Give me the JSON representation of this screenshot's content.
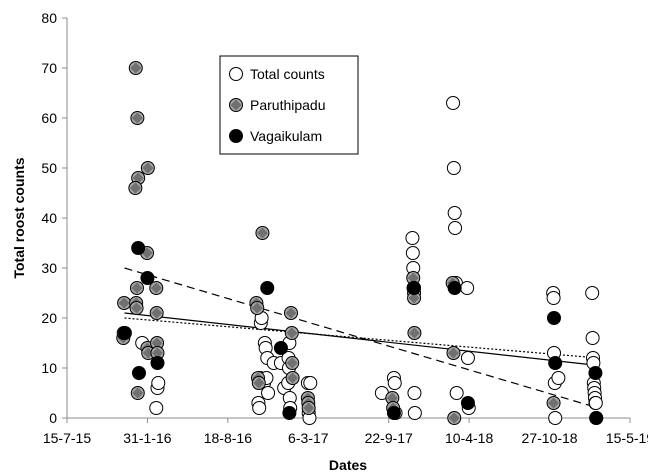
{
  "chart_data": {
    "type": "scatter",
    "title": "",
    "xlabel": "Dates",
    "ylabel": "Total roost counts",
    "x_tick_labels": [
      "15-7-15",
      "31-1-16",
      "18-8-16",
      "6-3-17",
      "22-9-17",
      "10-4-18",
      "27-10-18",
      "15-5-19"
    ],
    "xlim": [
      "2015-07-15",
      "2019-05-15"
    ],
    "ylim": [
      0,
      80
    ],
    "y_ticks": [
      0,
      10,
      20,
      30,
      40,
      50,
      60,
      70,
      80
    ],
    "grid": false,
    "legend_position": "top-center",
    "series": [
      {
        "name": "Total counts",
        "marker": "open-circle",
        "color": "#000000",
        "points": [
          [
            "2016-01-18",
            15
          ],
          [
            "2016-02-22",
            2
          ],
          [
            "2016-02-25",
            6
          ],
          [
            "2016-02-27",
            7
          ],
          [
            "2016-11-02",
            3
          ],
          [
            "2016-11-04",
            2
          ],
          [
            "2016-11-06",
            8
          ],
          [
            "2016-11-08",
            19
          ],
          [
            "2016-11-10",
            20
          ],
          [
            "2016-11-16",
            7
          ],
          [
            "2016-11-18",
            15
          ],
          [
            "2016-11-20",
            14
          ],
          [
            "2016-11-22",
            8
          ],
          [
            "2016-11-24",
            12
          ],
          [
            "2016-11-26",
            5
          ],
          [
            "2016-12-10",
            11
          ],
          [
            "2016-12-28",
            11
          ],
          [
            "2017-01-05",
            6
          ],
          [
            "2017-01-15",
            7
          ],
          [
            "2017-01-16",
            12
          ],
          [
            "2017-01-17",
            10
          ],
          [
            "2017-01-18",
            15
          ],
          [
            "2017-01-19",
            4
          ],
          [
            "2017-01-20",
            2
          ],
          [
            "2017-03-05",
            7
          ],
          [
            "2017-03-07",
            1
          ],
          [
            "2017-03-09",
            0
          ],
          [
            "2017-03-11",
            7
          ],
          [
            "2017-09-05",
            5
          ],
          [
            "2017-10-05",
            8
          ],
          [
            "2017-10-07",
            7
          ],
          [
            "2017-10-09",
            1
          ],
          [
            "2017-11-20",
            36
          ],
          [
            "2017-11-21",
            33
          ],
          [
            "2017-11-22",
            30
          ],
          [
            "2017-11-23",
            26
          ],
          [
            "2017-11-24",
            25
          ],
          [
            "2017-11-25",
            5
          ],
          [
            "2017-11-26",
            1
          ],
          [
            "2018-03-01",
            63
          ],
          [
            "2018-03-03",
            50
          ],
          [
            "2018-03-05",
            41
          ],
          [
            "2018-03-06",
            38
          ],
          [
            "2018-03-08",
            27
          ],
          [
            "2018-03-10",
            5
          ],
          [
            "2018-04-05",
            26
          ],
          [
            "2018-04-07",
            12
          ],
          [
            "2018-04-09",
            2
          ],
          [
            "2018-11-05",
            25
          ],
          [
            "2018-11-06",
            24
          ],
          [
            "2018-11-07",
            13
          ],
          [
            "2018-11-09",
            7
          ],
          [
            "2018-11-10",
            0
          ],
          [
            "2018-11-18",
            8
          ],
          [
            "2019-02-10",
            25
          ],
          [
            "2019-02-11",
            16
          ],
          [
            "2019-02-12",
            12
          ],
          [
            "2019-02-13",
            11
          ],
          [
            "2019-02-14",
            7
          ],
          [
            "2019-02-15",
            6
          ],
          [
            "2019-02-16",
            5
          ],
          [
            "2019-02-17",
            4
          ],
          [
            "2019-02-18",
            3
          ],
          [
            "2019-02-19",
            3
          ],
          [
            "2019-02-20",
            0
          ]
        ]
      },
      {
        "name": "Paruthipadu",
        "marker": "grey-diamond-circle",
        "color": "#808080",
        "points": [
          [
            "2015-12-02",
            16
          ],
          [
            "2015-12-03",
            17
          ],
          [
            "2015-12-04",
            23
          ],
          [
            "2016-01-02",
            70
          ],
          [
            "2016-01-06",
            60
          ],
          [
            "2016-01-08",
            48
          ],
          [
            "2016-01-01",
            46
          ],
          [
            "2016-01-05",
            26
          ],
          [
            "2016-01-03",
            23
          ],
          [
            "2016-01-04",
            22
          ],
          [
            "2016-01-07",
            5
          ],
          [
            "2016-02-01",
            50
          ],
          [
            "2016-01-30",
            33
          ],
          [
            "2016-01-31",
            14
          ],
          [
            "2016-02-02",
            13
          ],
          [
            "2016-02-22",
            26
          ],
          [
            "2016-02-23",
            21
          ],
          [
            "2016-02-24",
            15
          ],
          [
            "2016-02-25",
            13
          ],
          [
            "2016-10-28",
            23
          ],
          [
            "2016-10-30",
            22
          ],
          [
            "2016-11-01",
            8
          ],
          [
            "2016-11-03",
            7
          ],
          [
            "2016-11-12",
            37
          ],
          [
            "2017-01-22",
            21
          ],
          [
            "2017-01-24",
            17
          ],
          [
            "2017-01-25",
            11
          ],
          [
            "2017-01-26",
            8
          ],
          [
            "2017-03-05",
            4
          ],
          [
            "2017-03-06",
            3
          ],
          [
            "2017-03-07",
            2
          ],
          [
            "2017-10-01",
            4
          ],
          [
            "2017-10-03",
            2
          ],
          [
            "2017-11-22",
            28
          ],
          [
            "2017-11-23",
            26
          ],
          [
            "2017-11-24",
            24
          ],
          [
            "2017-11-25",
            17
          ],
          [
            "2018-02-28",
            27
          ],
          [
            "2018-03-02",
            13
          ],
          [
            "2018-03-04",
            0
          ],
          [
            "2018-11-06",
            3
          ]
        ]
      },
      {
        "name": "Vagaikulam",
        "marker": "black-circle",
        "color": "#000000",
        "points": [
          [
            "2015-12-06",
            17
          ],
          [
            "2016-01-08",
            34
          ],
          [
            "2016-01-10",
            9
          ],
          [
            "2016-01-31",
            28
          ],
          [
            "2016-02-25",
            11
          ],
          [
            "2016-11-24",
            26
          ],
          [
            "2016-12-28",
            14
          ],
          [
            "2017-01-18",
            1
          ],
          [
            "2017-10-05",
            1
          ],
          [
            "2017-11-24",
            26
          ],
          [
            "2018-03-05",
            26
          ],
          [
            "2018-04-07",
            3
          ],
          [
            "2018-11-07",
            20
          ],
          [
            "2018-11-10",
            11
          ],
          [
            "2019-02-18",
            9
          ],
          [
            "2019-02-20",
            0
          ]
        ]
      }
    ],
    "trendlines": [
      {
        "series": "Total counts",
        "style": "solid",
        "from": [
          "2015-12-05",
          21
        ],
        "to": [
          "2019-02-25",
          10.5
        ]
      },
      {
        "series": "Paruthipadu",
        "style": "dashed",
        "from": [
          "2015-12-05",
          30
        ],
        "to": [
          "2019-02-25",
          2
        ]
      },
      {
        "series": "Vagaikulam",
        "style": "dotted",
        "from": [
          "2015-12-05",
          20
        ],
        "to": [
          "2019-02-25",
          12
        ]
      }
    ]
  }
}
